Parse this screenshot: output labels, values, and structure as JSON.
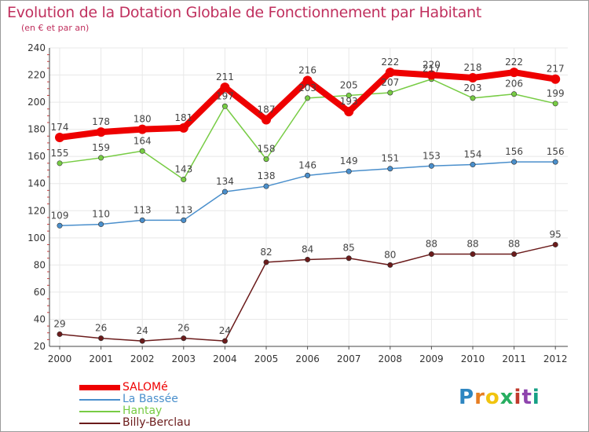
{
  "chart_data": {
    "type": "line",
    "title": "Evolution de la Dotation Globale de Fonctionnement par Habitant",
    "subtitle": "(en € et par an)",
    "xlabel": "",
    "ylabel": "",
    "categories": [
      "2000",
      "2001",
      "2002",
      "2003",
      "2004",
      "2005",
      "2006",
      "2007",
      "2008",
      "2009",
      "2010",
      "2011",
      "2012"
    ],
    "ylim": [
      20,
      240
    ],
    "yticks": [
      "20",
      "40",
      "60",
      "80",
      "100",
      "120",
      "140",
      "160",
      "180",
      "200",
      "220",
      "240"
    ],
    "grid": true,
    "legend_position": "bottom-left",
    "series": [
      {
        "name": "SALOMé",
        "color": "#ee0000",
        "values": [
          174,
          178,
          180,
          181,
          211,
          187,
          216,
          193,
          222,
          220,
          218,
          222,
          217
        ]
      },
      {
        "name": "La Bassée",
        "color": "#4a8fcc",
        "values": [
          109,
          110,
          113,
          113,
          134,
          138,
          146,
          149,
          151,
          153,
          154,
          156,
          156
        ]
      },
      {
        "name": "Hantay",
        "color": "#77cc44",
        "values": [
          155,
          159,
          164,
          143,
          197,
          158,
          203,
          205,
          207,
          217,
          203,
          206,
          199
        ]
      },
      {
        "name": "Billy-Berclau",
        "color": "#6b1b1b",
        "values": [
          29,
          26,
          24,
          26,
          24,
          82,
          84,
          85,
          80,
          88,
          88,
          88,
          95
        ]
      }
    ]
  },
  "logo": {
    "letters": [
      "P",
      "r",
      "o",
      "x",
      "i",
      "t",
      "i"
    ],
    "colors": [
      "#2e86c1",
      "#e67e22",
      "#f1c40f",
      "#27ae60",
      "#c0392b",
      "#8e44ad",
      "#16a085"
    ]
  }
}
